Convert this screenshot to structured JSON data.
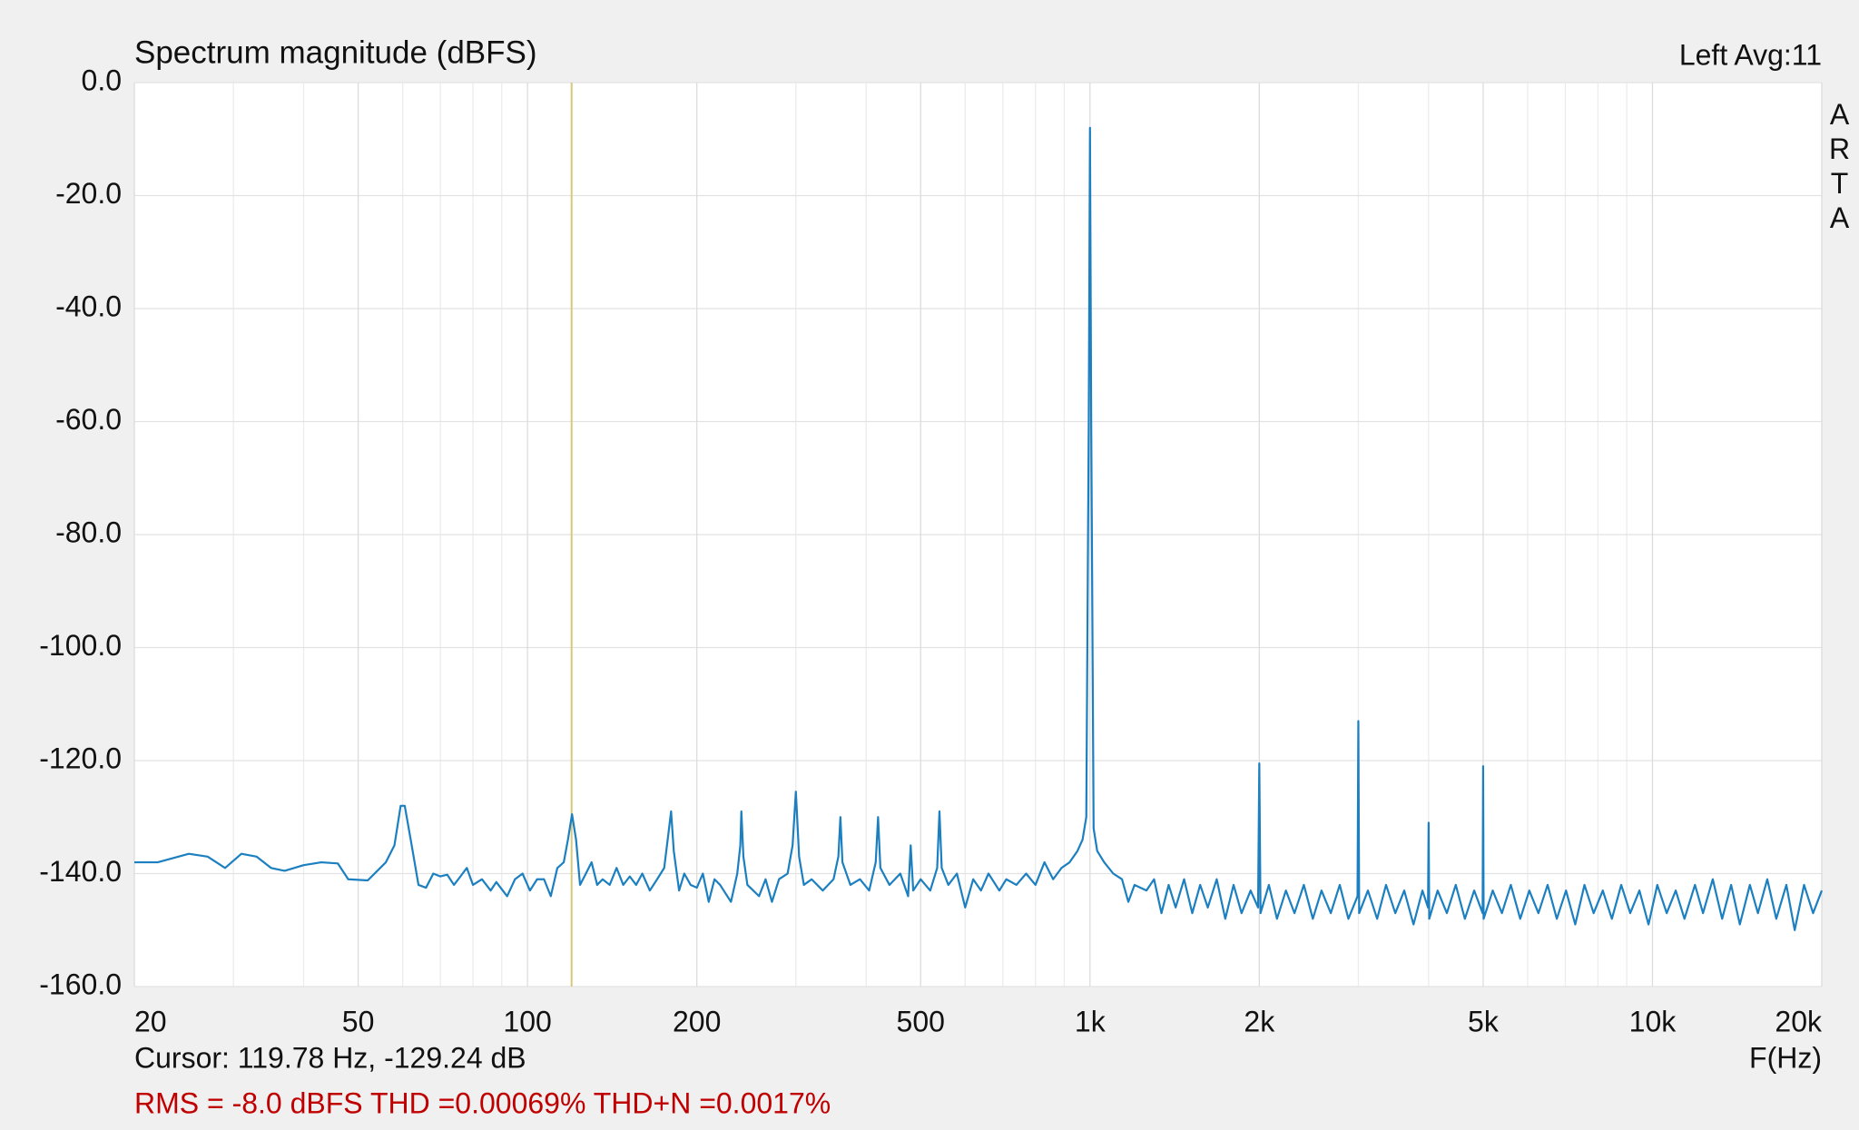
{
  "chart_data": {
    "type": "line",
    "title": "Spectrum magnitude (dBFS)",
    "channel_label": "Left  Avg:11",
    "side_label": "ARTA",
    "x_label": "F(Hz)",
    "cursor_text": "Cursor: 119.78 Hz, -129.24 dB",
    "stats_text": "RMS =   -8.0 dBFS THD =0.00069% THD+N =0.0017%",
    "cursor_x": 119.78,
    "cursor_color": "#d8c878",
    "x_scale": "log",
    "grid": true,
    "xlim": [
      20,
      20000
    ],
    "ylim": [
      -160,
      0
    ],
    "xticks": [
      20,
      50,
      100,
      200,
      500,
      {
        "value": 1000,
        "label": "1k"
      },
      {
        "value": 2000,
        "label": "2k"
      },
      {
        "value": 5000,
        "label": "5k"
      },
      {
        "value": 10000,
        "label": "10k"
      },
      {
        "value": 20000,
        "label": "20k"
      }
    ],
    "xminorticks": [
      30,
      40,
      60,
      70,
      80,
      90,
      300,
      400,
      600,
      700,
      800,
      900,
      3000,
      4000,
      6000,
      7000,
      8000,
      9000
    ],
    "yticks": [
      {
        "value": 0,
        "label": "0.0"
      },
      {
        "value": -20,
        "label": "-20.0"
      },
      {
        "value": -40,
        "label": "-40.0"
      },
      {
        "value": -60,
        "label": "-60.0"
      },
      {
        "value": -80,
        "label": "-80.0"
      },
      {
        "value": -100,
        "label": "-100.0"
      },
      {
        "value": -120,
        "label": "-120.0"
      },
      {
        "value": -140,
        "label": "-140.0"
      },
      {
        "value": -160,
        "label": "-160.0"
      }
    ],
    "x": [
      20,
      22,
      25,
      27,
      29,
      31,
      33,
      35,
      37,
      40,
      43,
      46,
      48,
      52,
      56,
      58,
      59.5,
      60.5,
      62,
      64,
      66,
      68,
      70,
      72,
      74,
      76,
      78,
      80,
      83,
      86,
      88,
      92,
      95,
      98,
      101,
      104,
      107,
      110,
      113,
      116,
      118,
      120,
      122,
      124,
      127,
      130,
      133,
      136,
      140,
      144,
      148,
      152,
      156,
      160,
      165,
      170,
      175,
      178,
      180,
      182,
      186,
      190,
      195,
      200,
      205,
      210,
      215,
      220,
      230,
      236,
      239,
      240,
      242,
      246,
      252,
      258,
      265,
      272,
      280,
      290,
      296,
      300,
      304,
      310,
      320,
      335,
      350,
      357,
      360,
      363,
      375,
      390,
      405,
      416,
      420,
      424,
      440,
      460,
      475,
      480,
      485,
      500,
      520,
      535,
      540,
      545,
      560,
      580,
      600,
      620,
      640,
      660,
      690,
      710,
      740,
      770,
      800,
      830,
      860,
      890,
      920,
      950,
      970,
      985,
      995,
      1000,
      1005,
      1015,
      1030,
      1060,
      1100,
      1140,
      1170,
      1200,
      1260,
      1300,
      1340,
      1380,
      1420,
      1470,
      1520,
      1570,
      1620,
      1680,
      1740,
      1800,
      1860,
      1930,
      1990,
      2000,
      2010,
      2080,
      2150,
      2230,
      2310,
      2400,
      2490,
      2580,
      2680,
      2780,
      2880,
      2990,
      3000,
      3010,
      3120,
      3240,
      3360,
      3490,
      3620,
      3760,
      3900,
      3990,
      4000,
      4010,
      4150,
      4310,
      4470,
      4640,
      4820,
      4990,
      5000,
      5010,
      5200,
      5400,
      5600,
      5820,
      6040,
      6270,
      6510,
      6760,
      7020,
      7290,
      7570,
      7860,
      8160,
      8470,
      8800,
      9130,
      9480,
      9840,
      10200,
      10600,
      11000,
      11400,
      11900,
      12300,
      12800,
      13300,
      13800,
      14300,
      14900,
      15400,
      16000,
      16600,
      17300,
      17900,
      18600,
      19300,
      20000
    ],
    "series": [
      {
        "color": "#1b7fc0",
        "values": [
          -138,
          -138,
          -136.5,
          -137,
          -139,
          -136.5,
          -137,
          -139,
          -139.5,
          -138.5,
          -138,
          -138.2,
          -141,
          -141.2,
          -138,
          -135,
          -128,
          -128,
          -134,
          -142,
          -142.5,
          -140,
          -140.5,
          -140.2,
          -142,
          -140.5,
          -139,
          -142,
          -141,
          -143,
          -141.5,
          -144,
          -141,
          -140,
          -143,
          -141,
          -141,
          -144,
          -139,
          -138,
          -134,
          -129.5,
          -134,
          -142,
          -140,
          -138,
          -142,
          -141,
          -142,
          -139,
          -142,
          -140.5,
          -142,
          -140,
          -143,
          -141,
          -139,
          -133,
          -129,
          -136,
          -143,
          -140,
          -142,
          -142.5,
          -140,
          -145,
          -141,
          -142,
          -145,
          -140,
          -135,
          -129,
          -137,
          -142,
          -143,
          -144,
          -141,
          -145,
          -141,
          -140,
          -135,
          -125.5,
          -137,
          -142,
          -141,
          -143,
          -141,
          -137,
          -130,
          -138,
          -142,
          -141,
          -143,
          -138,
          -130,
          -139,
          -142,
          -140,
          -144,
          -135,
          -143,
          -141,
          -143,
          -139,
          -129,
          -139,
          -142,
          -140,
          -146,
          -141,
          -143,
          -140,
          -143,
          -141,
          -142,
          -140,
          -142,
          -138,
          -141,
          -139,
          -138,
          -136,
          -134,
          -130,
          -60,
          -8,
          -60,
          -132,
          -136,
          -138,
          -140,
          -141,
          -145,
          -142,
          -143,
          -141,
          -147,
          -142,
          -146,
          -141,
          -147,
          -142,
          -146,
          -141,
          -148,
          -142,
          -147,
          -143,
          -146,
          -120.5,
          -147,
          -142,
          -148,
          -143,
          -147,
          -142,
          -148,
          -143,
          -147,
          -142,
          -148,
          -144,
          -113,
          -147,
          -143,
          -148,
          -142,
          -147,
          -143,
          -149,
          -143,
          -146,
          -131,
          -148,
          -143,
          -147,
          -142,
          -148,
          -143,
          -147,
          -121,
          -148,
          -143,
          -147,
          -142,
          -148,
          -143,
          -147,
          -142,
          -148,
          -143,
          -149,
          -142,
          -147,
          -143,
          -148,
          -142,
          -147,
          -143,
          -149,
          -142,
          -147,
          -143,
          -148,
          -142,
          -147,
          -141,
          -148,
          -142,
          -149,
          -142,
          -147,
          -141,
          -148,
          -142,
          -150,
          -142,
          -147,
          -143
        ]
      }
    ]
  }
}
